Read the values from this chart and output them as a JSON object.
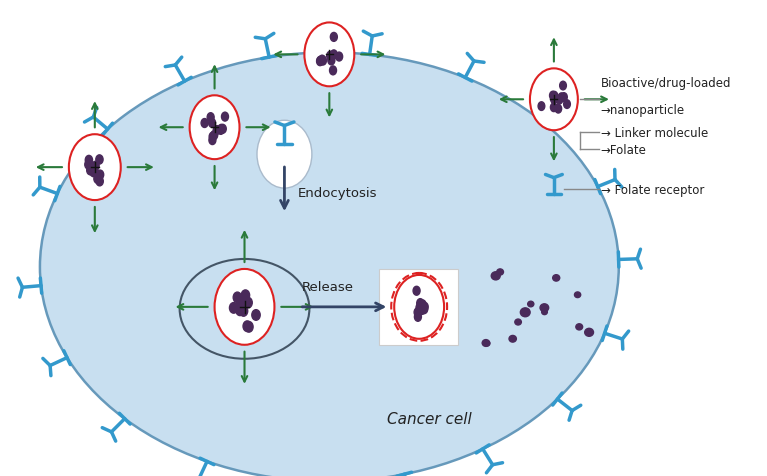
{
  "bg": "#ffffff",
  "cell_fill": "#c8dff0",
  "cell_edge": "#6699bb",
  "nucleus_edge": "#445566",
  "red": "#dd2222",
  "purple_dark": "#4a2a5a",
  "green_arrow": "#2a7a3a",
  "dark_arrow": "#334466",
  "cyan_blue": "#3399cc",
  "gray_line": "#888888",
  "text_color": "#222222",
  "legend_labels": {
    "nano_line1": "Bioactive/drug-loaded",
    "nano_line2": "→nanoparticle",
    "linker": "→ Linker molecule",
    "folate": "→Folate",
    "receptor": "→ Folate receptor",
    "endocytosis": "Endocytosis",
    "release": "Release",
    "cancer": "Cancer cell"
  }
}
